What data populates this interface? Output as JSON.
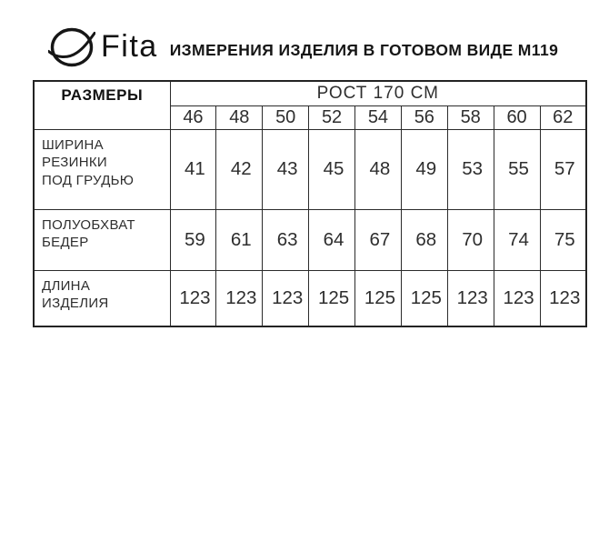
{
  "header": {
    "brand": "Fita",
    "logo_icon": "fita-orbit-ring-logo",
    "title": "ИЗМЕРЕНИЯ ИЗДЕЛИЯ В ГОТОВОМ ВИДЕ М119"
  },
  "table": {
    "corner_header": "РАЗМЕРЫ",
    "group_header": "РОСТ 170 СМ",
    "sizes": [
      "46",
      "48",
      "50",
      "52",
      "54",
      "56",
      "58",
      "60",
      "62"
    ],
    "rows": [
      {
        "label_lines": [
          "ШИРИНА",
          "РЕЗИНКИ",
          "ПОД ГРУДЬЮ"
        ],
        "values": [
          "41",
          "42",
          "43",
          "45",
          "48",
          "49",
          "53",
          "55",
          "57"
        ]
      },
      {
        "label_lines": [
          "ПОЛУОБХВАТ",
          "БЕДЕР"
        ],
        "values": [
          "59",
          "61",
          "63",
          "64",
          "67",
          "68",
          "70",
          "74",
          "75"
        ]
      },
      {
        "label_lines": [
          "ДЛИНА",
          "ИЗДЕЛИЯ"
        ],
        "values": [
          "123",
          "123",
          "123",
          "125",
          "125",
          "125",
          "123",
          "123",
          "123"
        ]
      }
    ]
  },
  "chart_data": {
    "type": "table",
    "title": "ИЗМЕРЕНИЯ ИЗДЕЛИЯ В ГОТОВОМ ВИДЕ М119",
    "columns_group": "РОСТ 170 СМ",
    "categories": [
      46,
      48,
      50,
      52,
      54,
      56,
      58,
      60,
      62
    ],
    "series": [
      {
        "name": "ШИРИНА РЕЗИНКИ ПОД ГРУДЬЮ",
        "values": [
          41,
          42,
          43,
          45,
          48,
          49,
          53,
          55,
          57
        ]
      },
      {
        "name": "ПОЛУОБХВАТ БЕДЕР",
        "values": [
          59,
          61,
          63,
          64,
          67,
          68,
          70,
          74,
          75
        ]
      },
      {
        "name": "ДЛИНА ИЗДЕЛИЯ",
        "values": [
          123,
          123,
          123,
          125,
          125,
          125,
          123,
          123,
          123
        ]
      }
    ]
  },
  "colors": {
    "ink": "#1a1a1a",
    "table_border": "#2b2b2b",
    "background": "#ffffff"
  }
}
